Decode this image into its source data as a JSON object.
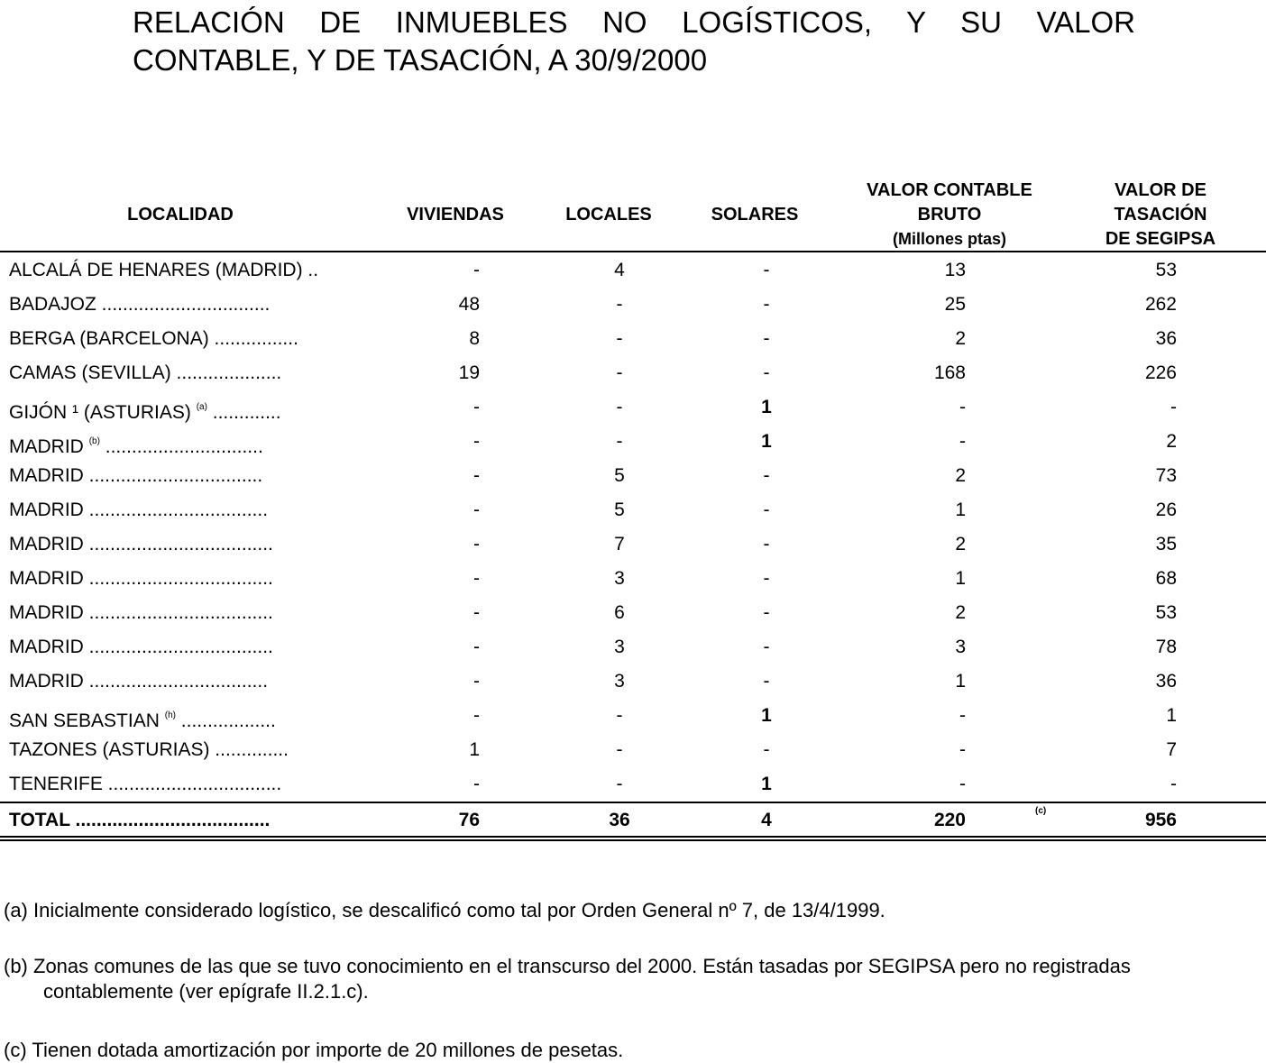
{
  "title": {
    "line1": "RELACIÓN DE INMUEBLES NO LOGÍSTICOS, Y SU VALOR",
    "line2": "CONTABLE, Y DE TASACIÓN, A 30/9/2000"
  },
  "headers": {
    "localidad": "LOCALIDAD",
    "viviendas": "VIVIENDAS",
    "locales": "LOCALES",
    "solares": "SOLARES",
    "valor_contable": [
      "VALOR CONTABLE",
      "BRUTO",
      "(Millones ptas)"
    ],
    "valor_tasacion": [
      "VALOR DE",
      "TASACIÓN",
      "DE SEGIPSA"
    ]
  },
  "rows": [
    {
      "localidad": "ALCALÁ DE HENARES (MADRID) ..",
      "viviendas": "-",
      "locales": "4",
      "solares": "-",
      "valor_contable": "13",
      "valor_tasacion": "53"
    },
    {
      "localidad": "BADAJOZ ................................",
      "viviendas": "48",
      "locales": "-",
      "solares": "-",
      "valor_contable": "25",
      "valor_tasacion": "262"
    },
    {
      "localidad": "BERGA (BARCELONA) ................",
      "viviendas": "8",
      "locales": "-",
      "solares": "-",
      "valor_contable": "2",
      "valor_tasacion": "36"
    },
    {
      "localidad": "CAMAS (SEVILLA) ....................",
      "viviendas": "19",
      "locales": "-",
      "solares": "-",
      "valor_contable": "168",
      "valor_tasacion": "226"
    },
    {
      "localidad": "GIJÓN ¹ (ASTURIAS)",
      "sup": "(a)",
      "dots": " .............",
      "viviendas": "-",
      "locales": "-",
      "solares": "1",
      "valor_contable": "-",
      "valor_tasacion": "-"
    },
    {
      "localidad": "MADRID",
      "sup": "(b)",
      "dots": " ..............................",
      "viviendas": "-",
      "locales": "-",
      "solares": "1",
      "valor_contable": "-",
      "valor_tasacion": "2"
    },
    {
      "localidad": "MADRID .................................",
      "viviendas": "-",
      "locales": "5",
      "solares": "-",
      "valor_contable": "2",
      "valor_tasacion": "73"
    },
    {
      "localidad": "MADRID ..................................",
      "viviendas": "-",
      "locales": "5",
      "solares": "-",
      "valor_contable": "1",
      "valor_tasacion": "26"
    },
    {
      "localidad": "MADRID ...................................",
      "viviendas": "-",
      "locales": "7",
      "solares": "-",
      "valor_contable": "2",
      "valor_tasacion": "35"
    },
    {
      "localidad": "MADRID ...................................",
      "viviendas": "-",
      "locales": "3",
      "solares": "-",
      "valor_contable": "1",
      "valor_tasacion": "68"
    },
    {
      "localidad": "MADRID ...................................",
      "viviendas": "-",
      "locales": "6",
      "solares": "-",
      "valor_contable": "2",
      "valor_tasacion": "53"
    },
    {
      "localidad": "MADRID ...................................",
      "viviendas": "-",
      "locales": "3",
      "solares": "-",
      "valor_contable": "3",
      "valor_tasacion": "78"
    },
    {
      "localidad": "MADRID ..................................",
      "viviendas": "-",
      "locales": "3",
      "solares": "-",
      "valor_contable": "1",
      "valor_tasacion": "36"
    },
    {
      "localidad": "SAN SEBASTIAN",
      "sup": "(h)",
      "dots": " ..................",
      "viviendas": "-",
      "locales": "-",
      "solares": "1",
      "valor_contable": "-",
      "valor_tasacion": "1"
    },
    {
      "localidad": "TAZONES (ASTURIAS) ..............",
      "viviendas": "1",
      "locales": "-",
      "solares": "-",
      "valor_contable": "-",
      "valor_tasacion": "7"
    },
    {
      "localidad": "TENERIFE .................................",
      "viviendas": "-",
      "locales": "-",
      "solares": "1",
      "valor_contable": "-",
      "valor_tasacion": "-"
    }
  ],
  "total": {
    "localidad": "TOTAL .....................................",
    "viviendas": "76",
    "locales": "36",
    "solares": "4",
    "valor_contable": "220",
    "mark": "(c)",
    "valor_tasacion": "956"
  },
  "footnotes": [
    "(a)  Inicialmente considerado logístico, se descalificó como tal por Orden General nº 7, de 13/4/1999.",
    "(b)  Zonas comunes de las que se tuvo conocimiento en el transcurso del 2000. Están tasadas por SEGIPSA pero no registradas contablemente (ver epígrafe II.2.1.c).",
    "(c) Tienen dotada amortización por importe de 20 millones de pesetas."
  ]
}
